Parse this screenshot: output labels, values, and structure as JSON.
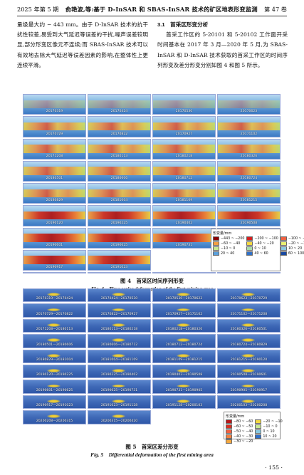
{
  "header": {
    "left": "2025 年第 5 期",
    "center": "俞艳波,等:基于 D-InSAR 和 SBAS-InSAR 技术的矿区地表形变监测",
    "right": "第 47 卷"
  },
  "left_column": {
    "paragraph": "量级最大约 − 443 mm。由于 D-InSAR 技术的抗干扰性较差,易受到大气延迟等误差的干扰,噪声误差较明显,部分形变区像元不连续;而 SBAS-InSAR 技术可以有效地去除大气延迟等误差因素的影响,在整体性上更连续平滑。"
  },
  "right_column": {
    "section_title": "3.1　首采区形变分析",
    "paragraph": "首采工作区的 5-20101 和 5-20102 工作面开采时间基本在 2017 年 3 月—2020 年 5 月,为 SBAS-InSAR 和 D-InSAR 技术获取的首采工作区的时间序列形变及差分形变分别如图 4 和图 5 所示。"
  },
  "figure4": {
    "caption_zh": "图 4　首采区时间序列形变",
    "caption_en": "Fig. 4　Time series deformation of the first mining area",
    "dates": [
      "20170319",
      "20170424",
      "20170530",
      "20170623",
      "20170729",
      "20170822",
      "20170927",
      "20171102",
      "20171208",
      "20180113",
      "20180218",
      "20180326",
      "20180501",
      "20180606",
      "20180712",
      "20180724",
      "20180829",
      "20181004",
      "20181109",
      "20181215",
      "20190120",
      "20190225",
      "20190402",
      "20190508",
      "20190601",
      "20190625",
      "20190731",
      "20190905",
      "20190917",
      "20191023",
      "20191128",
      "20200103",
      "20200208",
      "20200315",
      "",
      "20200420"
    ],
    "legend_title": "形变量/mm",
    "legend_items": [
      {
        "label": "−443 ~ −200",
        "color": "#8b0000"
      },
      {
        "label": "−200 ~ −100",
        "color": "#d42020"
      },
      {
        "label": "−100 ~ −60",
        "color": "#f06040"
      },
      {
        "label": "−60 ~ −40",
        "color": "#f4a040"
      },
      {
        "label": "−40 ~ −20",
        "color": "#f4d840"
      },
      {
        "label": "−20 ~ −10",
        "color": "#e8f070"
      },
      {
        "label": "−10 ~ 0",
        "color": "#c8e890"
      },
      {
        "label": "0 ~ 10",
        "color": "#a8dca8"
      },
      {
        "label": "10 ~ 20",
        "color": "#88c8e0"
      },
      {
        "label": "20 ~ 40",
        "color": "#5aa0dc"
      },
      {
        "label": "40 ~ 60",
        "color": "#3070c8"
      },
      {
        "label": "60 ~ 100",
        "color": "#1848a0"
      }
    ]
  },
  "figure5": {
    "caption_zh": "图 5　首采区差分形变",
    "caption_en": "Fig. 5　Differential deformation of the first mining area",
    "pairs": [
      "20170319—20170424",
      "20170424—20170530",
      "20170530—20170623",
      "20170623—20170729",
      "20170729—20170822",
      "20170822—20170927",
      "20170927—20171102",
      "20171102—20171208",
      "20171208—20180113",
      "20180113—20180218",
      "20180218—20180326",
      "20180326—20180501",
      "20180501—20180606",
      "20180606—20180712",
      "20180712—20180724",
      "20180724—20180829",
      "20180829—20181004",
      "20181004—20181109",
      "20181109—20181215",
      "20181215—20190120",
      "20190120—20190225",
      "20190225—20190402",
      "20190402—20190508",
      "20190508—20190601",
      "20190601—20190625",
      "20190625—20190731",
      "20190731—20190905",
      "20190905—20190917",
      "20190917—20191023",
      "20191023—20191128",
      "20191128—20200103",
      "20200103—20200208",
      "20200208—20200315",
      "20200315—20200420",
      "",
      ""
    ],
    "legend_title": "形变量/mm",
    "legend_items": [
      {
        "label": "−80 ~ −60",
        "color": "#b81818"
      },
      {
        "label": "−20 ~ −10",
        "color": "#f4d840"
      },
      {
        "label": "−60 ~ −50",
        "color": "#d83020"
      },
      {
        "label": "−10 ~ 0",
        "color": "#c8e890"
      },
      {
        "label": "−50 ~ −40",
        "color": "#f06040"
      },
      {
        "label": "0 ~ 10",
        "color": "#88c8e0"
      },
      {
        "label": "−40 ~ −30",
        "color": "#f48040"
      },
      {
        "label": "10 ~ 20",
        "color": "#3070c8"
      },
      {
        "label": "−30 ~ −20",
        "color": "#f4a840"
      },
      {
        "label": "",
        "color": ""
      }
    ]
  },
  "page_number": "· 155 ·"
}
